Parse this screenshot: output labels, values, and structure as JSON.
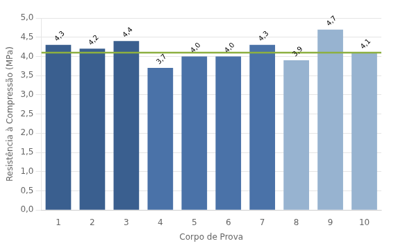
{
  "chart_data": {
    "type": "bar",
    "categories": [
      "1",
      "2",
      "3",
      "4",
      "5",
      "6",
      "7",
      "8",
      "9",
      "10"
    ],
    "values": [
      4.3,
      4.2,
      4.4,
      3.7,
      4.0,
      4.0,
      4.3,
      3.9,
      4.7,
      4.1
    ],
    "value_labels": [
      "4,3",
      "4,2",
      "4,4",
      "3,7",
      "4,0",
      "4,0",
      "4,3",
      "3,9",
      "4,7",
      "4,1"
    ],
    "data_labels": true,
    "colors": [
      "#3A5F8F",
      "#3A5F8F",
      "#3A5F8F",
      "#4A72A8",
      "#4A72A8",
      "#4A72A8",
      "#4A72A8",
      "#97B3D0",
      "#97B3D0",
      "#97B3D0"
    ],
    "mean_line": {
      "value": 4.1,
      "color": "#8DB040"
    },
    "xlabel": "Corpo de Prova",
    "ylabel": "Resistência à Compressão (MPa)",
    "ylim": [
      0,
      5.0
    ],
    "yticks": [
      {
        "value": 0.0,
        "label": "0,0"
      },
      {
        "value": 0.5,
        "label": "0,5"
      },
      {
        "value": 1.0,
        "label": "1,0"
      },
      {
        "value": 1.5,
        "label": "1,5"
      },
      {
        "value": 2.0,
        "label": "2,0"
      },
      {
        "value": 2.5,
        "label": "2,5"
      },
      {
        "value": 3.0,
        "label": "3,0"
      },
      {
        "value": 3.5,
        "label": "3,5"
      },
      {
        "value": 4.0,
        "label": "4,0"
      },
      {
        "value": 4.5,
        "label": "4,5"
      },
      {
        "value": 5.0,
        "label": "5,0"
      }
    ],
    "grid": true
  }
}
